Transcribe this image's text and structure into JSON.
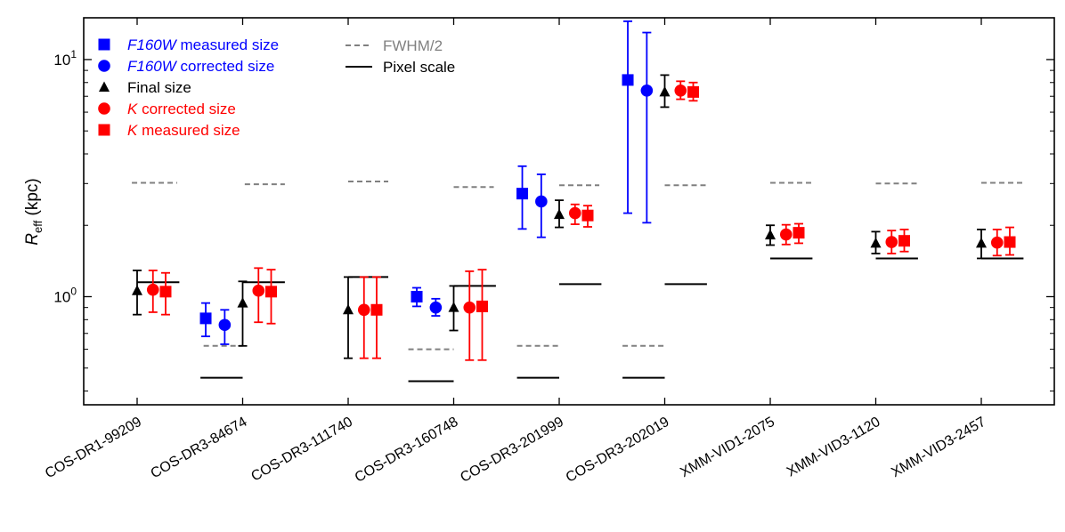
{
  "chart_data": {
    "type": "scatter",
    "yscale": "log",
    "ylim": [
      0.35,
      15
    ],
    "ylabel": {
      "main": "R",
      "sub": "eff",
      "unit": " (kpc)"
    },
    "yticks": [
      {
        "value": 1,
        "label": "10",
        "exp": "0"
      },
      {
        "value": 10,
        "label": "10",
        "exp": "1"
      }
    ],
    "categories": [
      "COS-DR1-99209",
      "COS-DR3-84674",
      "COS-DR3-111740",
      "COS-DR3-160748",
      "COS-DR3-201999",
      "COS-DR3-202019",
      "XMM-VID1-2075",
      "XMM-VID3-1120",
      "XMM-VID3-2457"
    ],
    "colors": {
      "blue": "#0000ff",
      "black": "#000000",
      "red": "#ff0000",
      "gray": "#808080"
    },
    "series": [
      {
        "name": "F160W measured size",
        "italic": "F160W",
        "rest": " measured size",
        "marker": "square",
        "color": "#0000ff",
        "offset": -0.35,
        "points": [
          null,
          [
            0.81,
            0.68,
            0.94
          ],
          null,
          [
            1.0,
            0.91,
            1.09
          ],
          [
            2.72,
            1.93,
            3.55
          ],
          [
            8.2,
            2.25,
            14.5
          ],
          null,
          null,
          null
        ]
      },
      {
        "name": "F160W corrected size",
        "italic": "F160W",
        "rest": " corrected size",
        "marker": "circle",
        "color": "#0000ff",
        "offset": -0.17,
        "points": [
          null,
          [
            0.76,
            0.63,
            0.88
          ],
          null,
          [
            0.9,
            0.83,
            0.98
          ],
          [
            2.52,
            1.78,
            3.28
          ],
          [
            7.4,
            2.05,
            13.0
          ],
          null,
          null,
          null
        ]
      },
      {
        "name": "Final size",
        "italic": "",
        "rest": "Final size",
        "marker": "triangle",
        "color": "#000000",
        "offset": 0.0,
        "points": [
          [
            1.06,
            0.84,
            1.29
          ],
          [
            0.94,
            0.62,
            1.16
          ],
          [
            0.88,
            0.55,
            1.21
          ],
          [
            0.9,
            0.72,
            1.11
          ],
          [
            2.22,
            1.96,
            2.55
          ],
          [
            7.3,
            6.3,
            8.6
          ],
          [
            1.82,
            1.65,
            2.0
          ],
          [
            1.68,
            1.52,
            1.88
          ],
          [
            1.68,
            1.45,
            1.92
          ]
        ]
      },
      {
        "name": "K corrected size",
        "italic": "K",
        "rest": " corrected size",
        "marker": "circle",
        "color": "#ff0000",
        "offset": 0.15,
        "points": [
          [
            1.07,
            0.86,
            1.29
          ],
          [
            1.06,
            0.78,
            1.32
          ],
          [
            0.88,
            0.55,
            1.21
          ],
          [
            0.9,
            0.54,
            1.28
          ],
          [
            2.25,
            2.02,
            2.45
          ],
          [
            7.4,
            6.8,
            8.1
          ],
          [
            1.83,
            1.66,
            2.01
          ],
          [
            1.7,
            1.52,
            1.9
          ],
          [
            1.69,
            1.49,
            1.92
          ]
        ]
      },
      {
        "name": "K measured size",
        "italic": "K",
        "rest": " measured size",
        "marker": "square",
        "color": "#ff0000",
        "offset": 0.27,
        "points": [
          [
            1.05,
            0.84,
            1.26
          ],
          [
            1.05,
            0.77,
            1.3
          ],
          [
            0.88,
            0.55,
            1.21
          ],
          [
            0.91,
            0.54,
            1.3
          ],
          [
            2.2,
            1.97,
            2.42
          ],
          [
            7.3,
            6.7,
            8.0
          ],
          [
            1.86,
            1.68,
            2.03
          ],
          [
            1.72,
            1.55,
            1.92
          ],
          [
            1.7,
            1.5,
            1.96
          ]
        ]
      }
    ],
    "fwhm_half": [
      {
        "category": 0,
        "value": 3.02,
        "from": -0.05,
        "to": 0.38
      },
      {
        "category": 1,
        "value": 2.98,
        "from": 0.02,
        "to": 0.4
      },
      {
        "category": 2,
        "value": 3.06,
        "from": 0.0,
        "to": 0.38
      },
      {
        "category": 3,
        "value": 2.9,
        "from": 0.0,
        "to": 0.38
      },
      {
        "category": 4,
        "value": 2.95,
        "from": 0.0,
        "to": 0.38
      },
      {
        "category": 5,
        "value": 2.95,
        "from": 0.0,
        "to": 0.4
      },
      {
        "category": 6,
        "value": 3.02,
        "from": 0.0,
        "to": 0.4
      },
      {
        "category": 7,
        "value": 3.0,
        "from": 0.0,
        "to": 0.4
      },
      {
        "category": 8,
        "value": 3.02,
        "from": 0.0,
        "to": 0.4
      },
      {
        "category": 1,
        "value": 0.62,
        "from": -0.37,
        "to": 0.0
      },
      {
        "category": 3,
        "value": 0.6,
        "from": -0.43,
        "to": 0.0
      },
      {
        "category": 4,
        "value": 0.62,
        "from": -0.4,
        "to": 0.0
      },
      {
        "category": 5,
        "value": 0.62,
        "from": -0.4,
        "to": 0.0
      }
    ],
    "pixel_scale": [
      {
        "category": 0,
        "value": 1.15,
        "from": 0.0,
        "to": 0.4
      },
      {
        "category": 1,
        "value": 1.15,
        "from": 0.0,
        "to": 0.4
      },
      {
        "category": 2,
        "value": 1.21,
        "from": 0.0,
        "to": 0.38
      },
      {
        "category": 3,
        "value": 1.11,
        "from": 0.0,
        "to": 0.4
      },
      {
        "category": 4,
        "value": 1.13,
        "from": 0.0,
        "to": 0.4
      },
      {
        "category": 5,
        "value": 1.13,
        "from": 0.0,
        "to": 0.4
      },
      {
        "category": 6,
        "value": 1.45,
        "from": 0.0,
        "to": 0.4
      },
      {
        "category": 7,
        "value": 1.45,
        "from": 0.0,
        "to": 0.4
      },
      {
        "category": 8,
        "value": 1.45,
        "from": 0.0,
        "to": 0.4
      },
      {
        "category": 1,
        "value": 0.455,
        "from": -0.4,
        "to": 0.0
      },
      {
        "category": 3,
        "value": 0.44,
        "from": -0.43,
        "to": 0.0
      },
      {
        "category": 4,
        "value": 0.455,
        "from": -0.4,
        "to": 0.0
      },
      {
        "category": 5,
        "value": 0.455,
        "from": -0.4,
        "to": 0.0
      }
    ],
    "legend_lines": [
      {
        "name": "FWHM/2",
        "style": "dashed",
        "color": "#808080"
      },
      {
        "name": "Pixel scale",
        "style": "solid",
        "color": "#000000"
      }
    ]
  }
}
